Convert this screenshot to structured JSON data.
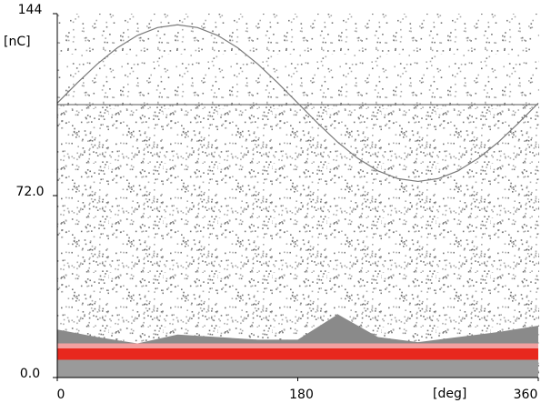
{
  "chart_data": {
    "type": "area",
    "x_label": "[deg]",
    "y_label": "[nC]",
    "xlim": [
      0,
      360
    ],
    "xticks": [
      0,
      180,
      360
    ],
    "ylim": [
      0,
      144
    ],
    "yticks": [
      {
        "value": 0,
        "label": "0.0"
      },
      {
        "value": 72,
        "label": "72.0"
      },
      144
    ],
    "x": [
      0,
      30,
      60,
      90,
      120,
      150,
      180,
      210,
      240,
      270,
      300,
      330,
      360
    ],
    "series": [
      {
        "color": "#8a8a8a",
        "values": [
          19,
          16,
          13.5,
          17,
          16,
          15,
          15,
          25,
          16,
          14,
          16,
          18,
          20.5
        ]
      },
      {
        "color": "#f2a0a0",
        "values": [
          13.5,
          13.5,
          13.5,
          13.5,
          13.5,
          13.5,
          13.5,
          13.5,
          13.5,
          13.5,
          13.5,
          13.5,
          13.5
        ]
      },
      {
        "color": "#e8281e",
        "values": [
          11.5,
          11.5,
          11.5,
          11.5,
          11.5,
          11.5,
          11.5,
          11.5,
          11.5,
          11.5,
          11.5,
          11.5,
          11.5
        ]
      },
      {
        "color": "#9a9a9a",
        "values": [
          7,
          7,
          7,
          7,
          7,
          7,
          7,
          7,
          7,
          7,
          7,
          7,
          7
        ]
      }
    ],
    "reference_curve": {
      "color": "#7a7a7a",
      "x": [
        0,
        15,
        30,
        45,
        60,
        75,
        90,
        105,
        120,
        135,
        150,
        165,
        180,
        195,
        210,
        225,
        240,
        255,
        270,
        285,
        300,
        315,
        330,
        345,
        360
      ],
      "values": [
        108.6,
        116.6,
        124.1,
        130.5,
        135.4,
        138.5,
        139.6,
        138.5,
        135.4,
        130.5,
        124.1,
        116.6,
        108.6,
        100.6,
        93.1,
        86.7,
        81.8,
        78.7,
        77.6,
        78.7,
        81.8,
        86.7,
        93.1,
        100.6,
        108.6
      ]
    },
    "threshold": {
      "value": 108,
      "color": "#7a7a7a"
    }
  }
}
